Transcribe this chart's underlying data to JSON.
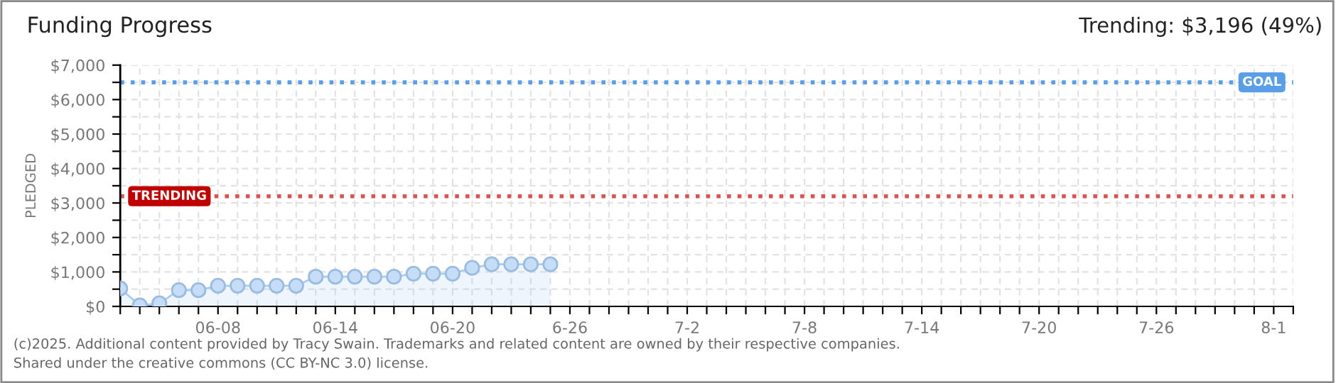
{
  "chart_data": {
    "type": "area",
    "title": "Funding Progress",
    "ylabel": "PLEDGED",
    "annotations": [
      "Trending: $3,196 (49%)",
      "(c)2025. Additional content provided by Tracy Swain. Trademarks and related content are owned by their respective companies.",
      "Shared under the creative commons (CC BY-NC 3.0) license."
    ],
    "x": [
      "2025-06-03",
      "2025-06-04",
      "2025-06-05",
      "2025-06-06",
      "2025-06-07",
      "2025-06-08",
      "2025-06-09",
      "2025-06-10",
      "2025-06-11",
      "2025-06-12",
      "2025-06-13",
      "2025-06-14",
      "2025-06-15",
      "2025-06-16",
      "2025-06-17",
      "2025-06-18",
      "2025-06-19",
      "2025-06-20",
      "2025-06-21",
      "2025-06-22",
      "2025-06-23",
      "2025-06-24",
      "2025-06-25"
    ],
    "series": [
      {
        "color": "#a9cbf0",
        "values": [
          520,
          30,
          90,
          470,
          470,
          600,
          600,
          600,
          600,
          600,
          860,
          860,
          860,
          860,
          860,
          950,
          950,
          950,
          1120,
          1220,
          1220,
          1220,
          1220
        ]
      }
    ],
    "marker": "circle",
    "line_style": "solid",
    "grid": true,
    "ylim": [
      0,
      7000
    ],
    "yticks": [
      {
        "value": 0,
        "label": "$0"
      },
      {
        "value": 500,
        "label": null
      },
      {
        "value": 1000,
        "label": "$1,000"
      },
      {
        "value": 1500,
        "label": null
      },
      {
        "value": 2000,
        "label": "$2,000"
      },
      {
        "value": 2500,
        "label": null
      },
      {
        "value": 3000,
        "label": "$3,000"
      },
      {
        "value": 3500,
        "label": null
      },
      {
        "value": 4000,
        "label": "$4,000"
      },
      {
        "value": 4500,
        "label": null
      },
      {
        "value": 5000,
        "label": "$5,000"
      },
      {
        "value": 5500,
        "label": null
      },
      {
        "value": 6000,
        "label": "$6,000"
      },
      {
        "value": 6500,
        "label": null
      },
      {
        "value": 7000,
        "label": "$7,000"
      }
    ],
    "xlim": [
      "2025-06-03",
      "2025-08-02"
    ],
    "xticks": [
      {
        "value": "2025-06-03",
        "label": null
      },
      {
        "value": "2025-06-04",
        "label": null
      },
      {
        "value": "2025-06-05",
        "label": null
      },
      {
        "value": "2025-06-06",
        "label": null
      },
      {
        "value": "2025-06-07",
        "label": null
      },
      {
        "value": "2025-06-08",
        "label": "06-08"
      },
      {
        "value": "2025-06-09",
        "label": null
      },
      {
        "value": "2025-06-10",
        "label": null
      },
      {
        "value": "2025-06-11",
        "label": null
      },
      {
        "value": "2025-06-12",
        "label": null
      },
      {
        "value": "2025-06-13",
        "label": null
      },
      {
        "value": "2025-06-14",
        "label": "06-14"
      },
      {
        "value": "2025-06-15",
        "label": null
      },
      {
        "value": "2025-06-16",
        "label": null
      },
      {
        "value": "2025-06-17",
        "label": null
      },
      {
        "value": "2025-06-18",
        "label": null
      },
      {
        "value": "2025-06-19",
        "label": null
      },
      {
        "value": "2025-06-20",
        "label": "06-20"
      },
      {
        "value": "2025-06-21",
        "label": null
      },
      {
        "value": "2025-06-22",
        "label": null
      },
      {
        "value": "2025-06-23",
        "label": null
      },
      {
        "value": "2025-06-24",
        "label": null
      },
      {
        "value": "2025-06-25",
        "label": null
      },
      {
        "value": "2025-06-26",
        "label": "6-26"
      },
      {
        "value": "2025-06-27",
        "label": null
      },
      {
        "value": "2025-06-28",
        "label": null
      },
      {
        "value": "2025-06-29",
        "label": null
      },
      {
        "value": "2025-06-30",
        "label": null
      },
      {
        "value": "2025-07-01",
        "label": null
      },
      {
        "value": "2025-07-02",
        "label": "7-2"
      },
      {
        "value": "2025-07-03",
        "label": null
      },
      {
        "value": "2025-07-04",
        "label": null
      },
      {
        "value": "2025-07-05",
        "label": null
      },
      {
        "value": "2025-07-06",
        "label": null
      },
      {
        "value": "2025-07-07",
        "label": null
      },
      {
        "value": "2025-07-08",
        "label": "7-8"
      },
      {
        "value": "2025-07-09",
        "label": null
      },
      {
        "value": "2025-07-10",
        "label": null
      },
      {
        "value": "2025-07-11",
        "label": null
      },
      {
        "value": "2025-07-12",
        "label": null
      },
      {
        "value": "2025-07-13",
        "label": null
      },
      {
        "value": "2025-07-14",
        "label": "7-14"
      },
      {
        "value": "2025-07-15",
        "label": null
      },
      {
        "value": "2025-07-16",
        "label": null
      },
      {
        "value": "2025-07-17",
        "label": null
      },
      {
        "value": "2025-07-18",
        "label": null
      },
      {
        "value": "2025-07-19",
        "label": null
      },
      {
        "value": "2025-07-20",
        "label": "7-20"
      },
      {
        "value": "2025-07-21",
        "label": null
      },
      {
        "value": "2025-07-22",
        "label": null
      },
      {
        "value": "2025-07-23",
        "label": null
      },
      {
        "value": "2025-07-24",
        "label": null
      },
      {
        "value": "2025-07-25",
        "label": null
      },
      {
        "value": "2025-07-26",
        "label": "7-26"
      },
      {
        "value": "2025-07-27",
        "label": null
      },
      {
        "value": "2025-07-28",
        "label": null
      },
      {
        "value": "2025-07-29",
        "label": null
      },
      {
        "value": "2025-07-30",
        "label": null
      },
      {
        "value": "2025-07-31",
        "label": null
      },
      {
        "value": "2025-08-01",
        "label": "8-1"
      },
      {
        "value": "2025-08-02",
        "label": null
      }
    ],
    "ref_lines": [
      {
        "axis": "y",
        "value": 6500,
        "label": "GOAL",
        "color": "#5b9ee8",
        "line_style": "dotted"
      },
      {
        "axis": "y",
        "value": 3196,
        "label": "TRENDING",
        "color": "#d9534f",
        "line_style": "dotted"
      }
    ]
  }
}
